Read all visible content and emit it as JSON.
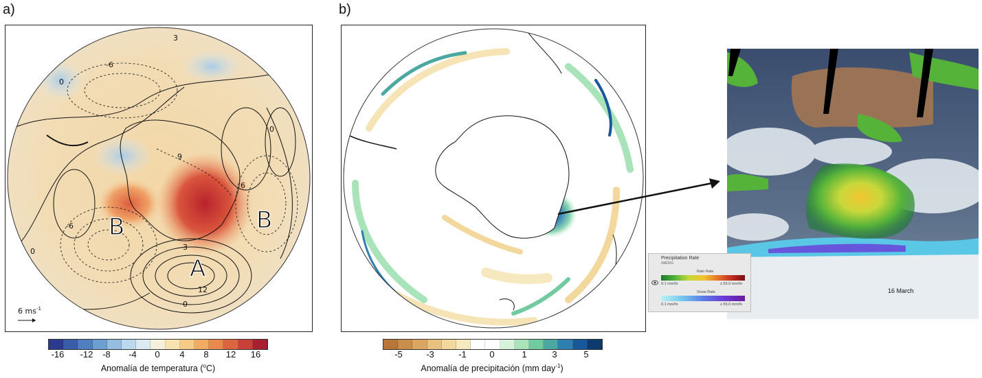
{
  "panels": {
    "a": {
      "label": "a)",
      "letters": [
        "B",
        "A",
        "B"
      ],
      "contour_labels": [
        "3",
        "-6",
        "0",
        "6",
        "-6",
        "-3",
        "12",
        "0",
        "0",
        "0",
        "9"
      ],
      "vector_scale": "6 ms",
      "vector_scale_sup": "-1",
      "colorbar": {
        "ticks": [
          "-16",
          "-12",
          "-8",
          "-4",
          "0",
          "4",
          "8",
          "12",
          "16"
        ],
        "title_pre": "Anomalía de temperatura (",
        "title_sup": "o",
        "title_post": "C)",
        "colors": [
          "#2b3a8f",
          "#3b5ca8",
          "#4f7fbf",
          "#6c9fd0",
          "#94bde0",
          "#bcd8ec",
          "#dcebf2",
          "#f4f0d9",
          "#f7e2b0",
          "#f5cb86",
          "#f1ac63",
          "#e88a4d",
          "#dc6440",
          "#c8403a",
          "#a81f30"
        ]
      }
    },
    "b": {
      "label": "b)",
      "colorbar": {
        "ticks": [
          "-5",
          "-3",
          "-1",
          "0",
          "1",
          "3",
          "5"
        ],
        "title_pre": "Anomalía de precipitación (mm day",
        "title_sup": "-1",
        "title_post": ")",
        "colors": [
          "#b8763a",
          "#c98e4c",
          "#daa662",
          "#e8c07f",
          "#f2d89d",
          "#f7e9bf",
          "#ffffff",
          "#ffffff",
          "#d6f2da",
          "#a9e3b9",
          "#72cba0",
          "#4aa8a0",
          "#2f7fb0",
          "#18589a",
          "#0c3a6e"
        ]
      }
    },
    "satellite": {
      "date_label": "16 March",
      "legend": {
        "title": "Precipitation Rate",
        "subtitle": "IMERG",
        "rain_label": "Rain Rate",
        "rain_min": "0.1 mm/hr",
        "rain_max": "≥ 55.0 mm/hr",
        "snow_label": "Snow Rate",
        "snow_min": "0.1 mm/hr",
        "snow_max": "≥ 55.0 mm/hr",
        "rain_colors": [
          "#1b7a2e",
          "#55b33a",
          "#c8d83a",
          "#f2c531",
          "#e8792a",
          "#c43122",
          "#7a0d12"
        ],
        "snow_colors": [
          "#b8f2f6",
          "#74c8f0",
          "#5a7ee6",
          "#6a3ad8",
          "#6a1a9a"
        ]
      }
    }
  }
}
